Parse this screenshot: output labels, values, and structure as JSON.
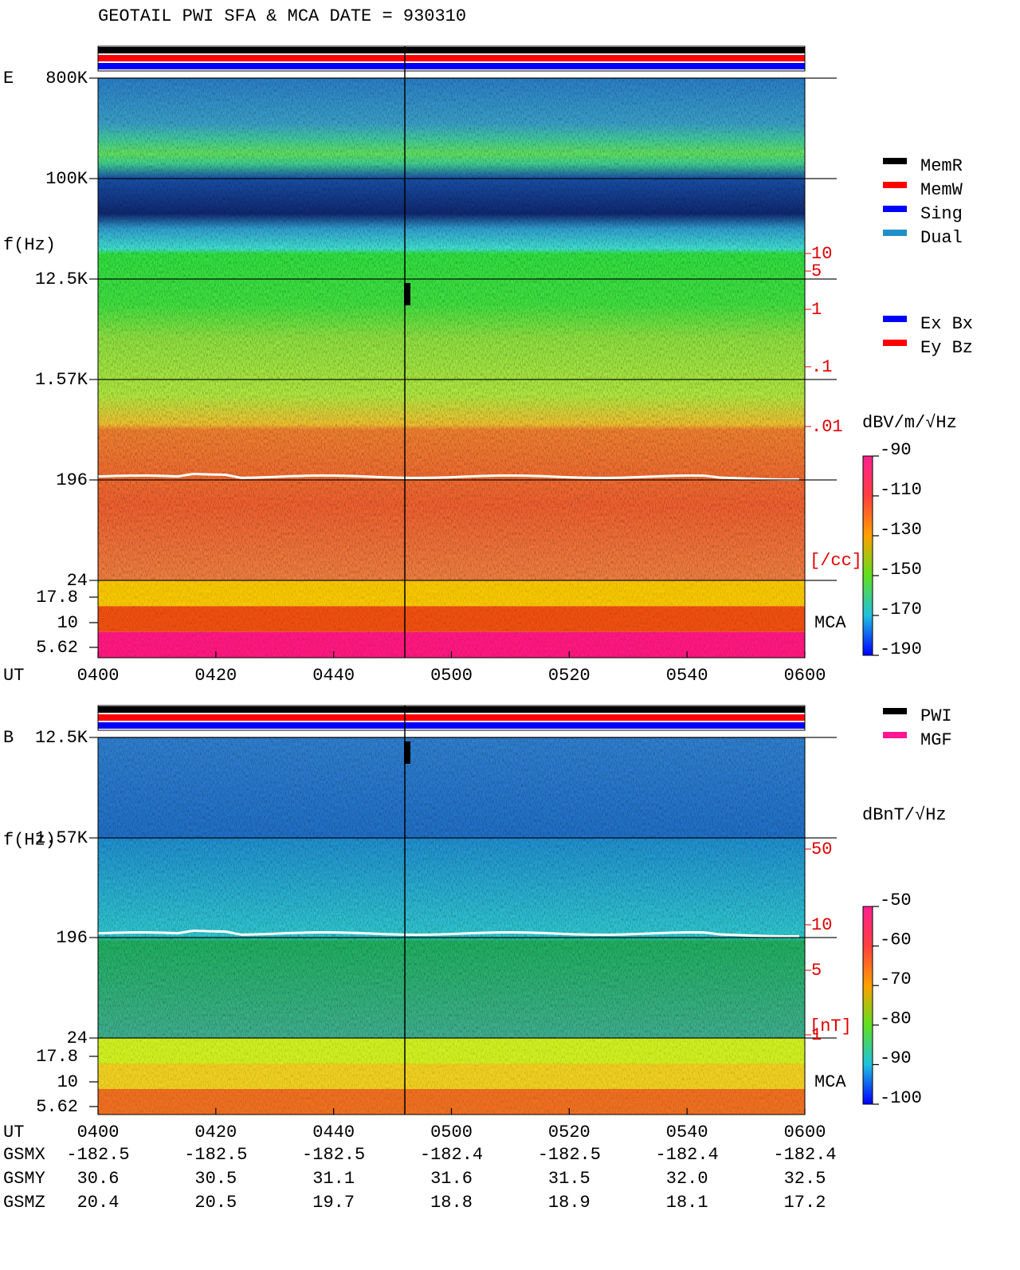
{
  "title": "GEOTAIL  PWI SFA & MCA  DATE = 930310",
  "legend_mem": [
    {
      "label": "MemR",
      "color": "#000000"
    },
    {
      "label": "MemW",
      "color": "#ff0000"
    },
    {
      "label": "Sing",
      "color": "#0000ff"
    },
    {
      "label": "Dual",
      "color": "#1e90c8"
    }
  ],
  "legend_comp": [
    {
      "label": "Ex Bx",
      "color": "#0000ff"
    },
    {
      "label": "Ey Bz",
      "color": "#ff0000"
    }
  ],
  "legend_src": [
    {
      "label": "PWI",
      "color": "#000000"
    },
    {
      "label": "MGF",
      "color": "#ff1493"
    }
  ],
  "panels": [
    {
      "label": "E",
      "axis_label": "f(Hz)",
      "freq_ticks": [
        "800K",
        "100K",
        "12.5K",
        "1.57K",
        "196",
        "24"
      ],
      "mca_ticks": [
        "17.8",
        "10",
        "5.62"
      ],
      "right_scale": [
        "10",
        "5",
        "1",
        ".1",
        ".01"
      ],
      "right_unit": "[/cc]",
      "mca_label": "MCA",
      "colorbar_unit": "dBV/m/√Hz",
      "colorbar_ticks": [
        "-90",
        "-110",
        "-130",
        "-150",
        "-170",
        "-190"
      ],
      "ut_label": "UT",
      "time_ticks": [
        "0400",
        "0420",
        "0440",
        "0500",
        "0520",
        "0540",
        "0600"
      ]
    },
    {
      "label": "B",
      "axis_label": "f(Hz)",
      "freq_ticks": [
        "12.5K",
        "1.57K",
        "196",
        "24"
      ],
      "mca_ticks": [
        "17.8",
        "10",
        "5.62"
      ],
      "right_scale": [
        "50",
        "10",
        "5",
        "1"
      ],
      "right_unit": "[nT]",
      "mca_label": "MCA",
      "colorbar_unit": "dBnT/√Hz",
      "colorbar_ticks": [
        "-50",
        "-60",
        "-70",
        "-80",
        "-90",
        "-100"
      ],
      "ut_label": "UT",
      "time_ticks": [
        "0400",
        "0420",
        "0440",
        "0500",
        "0520",
        "0540",
        "0600"
      ]
    }
  ],
  "orbit": [
    {
      "label": "GSMX",
      "values": [
        "-182.5",
        "-182.5",
        "-182.5",
        "-182.4",
        "-182.5",
        "-182.4",
        "-182.4"
      ]
    },
    {
      "label": "GSMY",
      "values": [
        "30.6",
        "30.5",
        "31.1",
        "31.6",
        "31.5",
        "32.0",
        "32.5"
      ]
    },
    {
      "label": "GSMZ",
      "values": [
        "20.4",
        "20.5",
        "19.7",
        "18.8",
        "18.9",
        "18.1",
        "17.2"
      ]
    }
  ]
}
